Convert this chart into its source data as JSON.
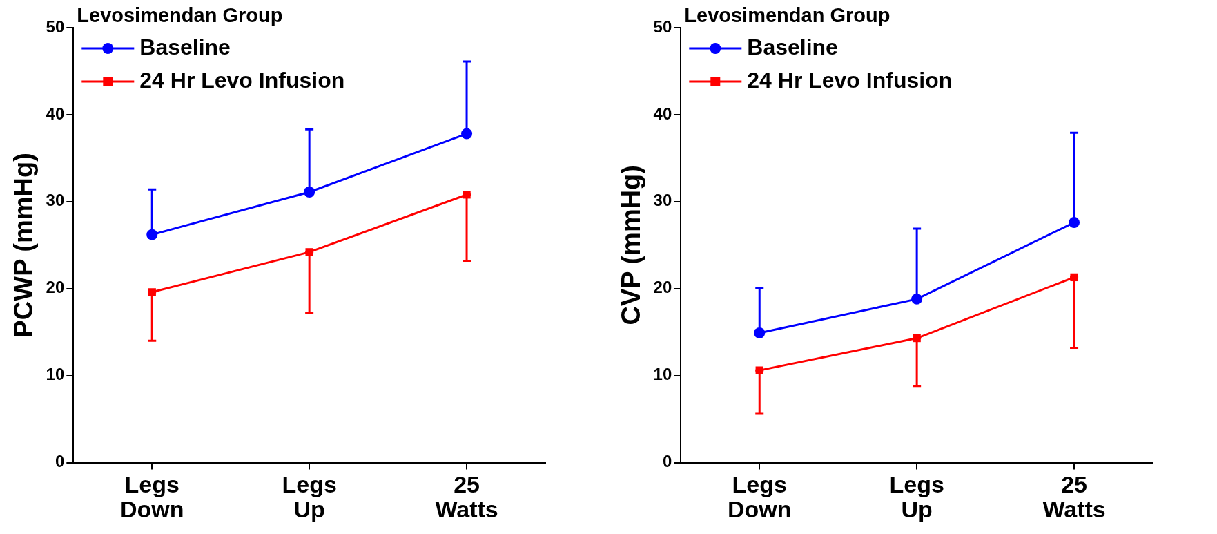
{
  "chart_data": [
    {
      "type": "line",
      "title": "Levosimendan Group",
      "ylabel": "PCWP (mmHg)",
      "categories": [
        "Legs Down",
        "Legs Up",
        "25 Watts"
      ],
      "ylim": [
        0,
        50
      ],
      "yticks": [
        0,
        10,
        20,
        30,
        40,
        50
      ],
      "grid": false,
      "legend": "top left",
      "series": [
        {
          "name": "Baseline",
          "color": "#0000ff",
          "marker": "circle",
          "values": [
            26.2,
            31.1,
            37.8
          ],
          "errors": [
            [
              26.2,
              31.4
            ],
            [
              31.1,
              38.3
            ],
            [
              37.8,
              46.1
            ]
          ]
        },
        {
          "name": "24 Hr Levo Infusion",
          "color": "#ff0000",
          "marker": "square",
          "values": [
            19.6,
            24.2,
            30.8
          ],
          "errors": [
            [
              14.0,
              19.6
            ],
            [
              17.2,
              24.2
            ],
            [
              23.2,
              30.8
            ]
          ]
        }
      ]
    },
    {
      "type": "line",
      "title": "Levosimendan Group",
      "ylabel": "CVP (mmHg)",
      "categories": [
        "Legs Down",
        "Legs Up",
        "25 Watts"
      ],
      "ylim": [
        0,
        50
      ],
      "yticks": [
        0,
        10,
        20,
        30,
        40,
        50
      ],
      "grid": false,
      "legend": "top left",
      "series": [
        {
          "name": "Baseline",
          "color": "#0000ff",
          "marker": "circle",
          "values": [
            14.9,
            18.8,
            27.6
          ],
          "errors": [
            [
              14.9,
              20.1
            ],
            [
              18.8,
              26.9
            ],
            [
              27.6,
              37.9
            ]
          ]
        },
        {
          "name": "24 Hr Levo Infusion",
          "color": "#ff0000",
          "marker": "square",
          "values": [
            10.6,
            14.3,
            21.3
          ],
          "errors": [
            [
              5.6,
              10.6
            ],
            [
              8.8,
              14.3
            ],
            [
              13.2,
              21.3
            ]
          ]
        }
      ]
    }
  ]
}
